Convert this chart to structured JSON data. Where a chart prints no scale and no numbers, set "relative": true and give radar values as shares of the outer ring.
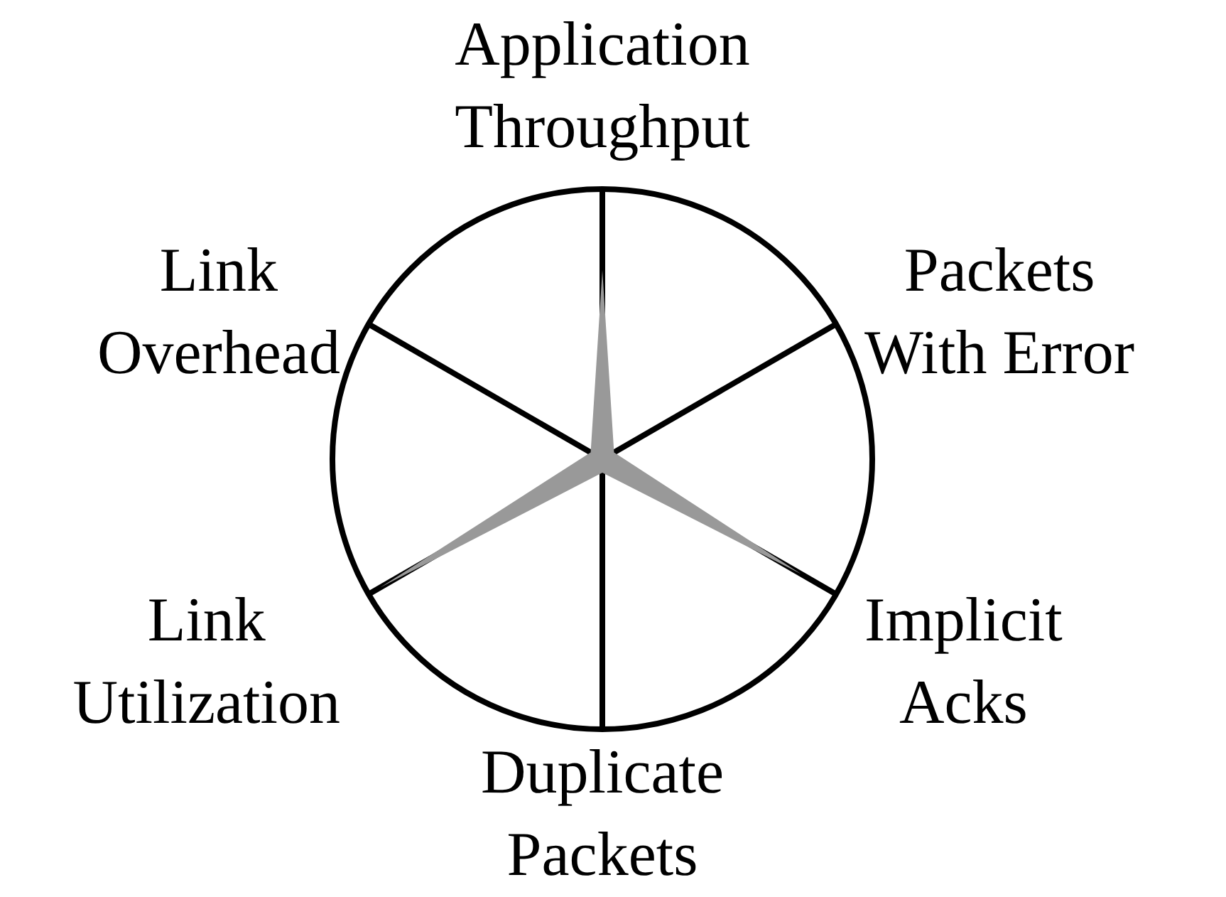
{
  "chart_data": {
    "type": "radar",
    "relative": true,
    "categories": [
      "Application Throughput",
      "Packets With Error",
      "Implicit Acks",
      "Duplicate Packets",
      "Link Utilization",
      "Link Overhead"
    ],
    "series": [
      {
        "color": "#999999",
        "values": [
          0.7,
          0.05,
          0.85,
          0.05,
          0.95,
          0.05
        ]
      }
    ],
    "marker": "none",
    "legend": false
  }
}
